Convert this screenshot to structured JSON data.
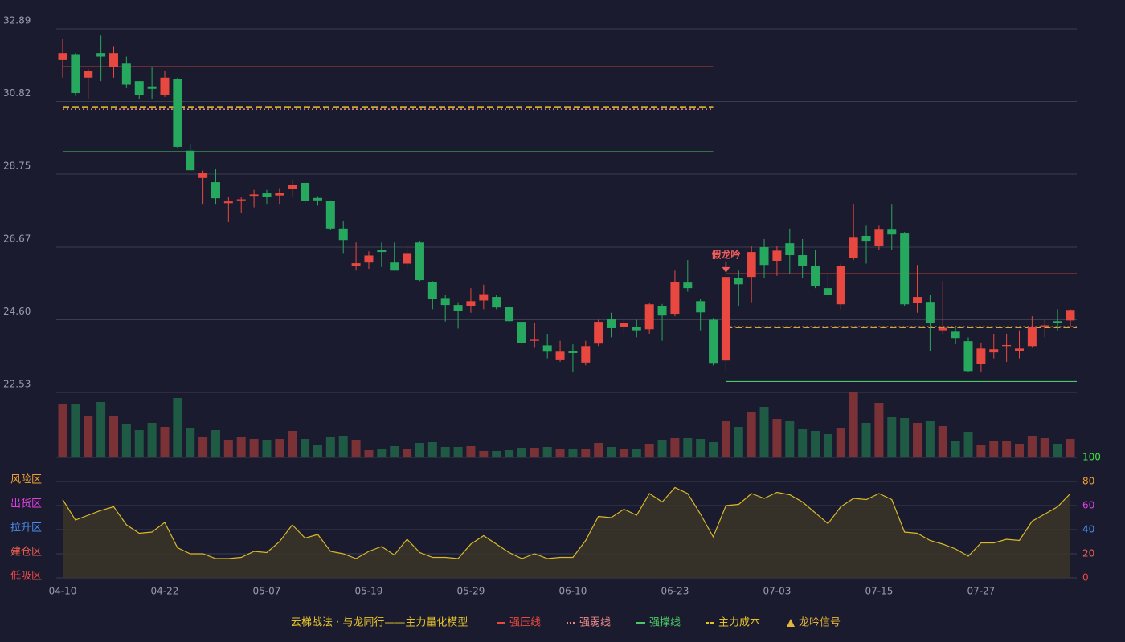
{
  "chart_data": {
    "type": "candlestick",
    "categories": [
      "04-10",
      null,
      null,
      null,
      null,
      null,
      null,
      null,
      "04-22",
      null,
      null,
      null,
      null,
      null,
      null,
      null,
      "05-07",
      null,
      null,
      null,
      null,
      null,
      null,
      null,
      "05-19",
      null,
      null,
      null,
      null,
      null,
      null,
      null,
      "05-29",
      null,
      null,
      null,
      null,
      null,
      null,
      null,
      "06-10",
      null,
      null,
      null,
      null,
      null,
      null,
      null,
      "06-23",
      null,
      null,
      null,
      null,
      null,
      null,
      null,
      "07-03",
      null,
      null,
      null,
      null,
      null,
      null,
      null,
      "07-15",
      null,
      null,
      null,
      null,
      null,
      null,
      null,
      "07-27",
      null,
      null,
      null,
      null,
      null,
      null,
      null
    ],
    "open": [
      32.0,
      32.17,
      31.5,
      32.2,
      31.8,
      31.9,
      31.4,
      31.25,
      31.0,
      31.47,
      29.42,
      28.64,
      28.52,
      27.92,
      28.0,
      28.13,
      28.2,
      28.14,
      28.32,
      28.5,
      28.07,
      27.99,
      27.2,
      26.14,
      26.23,
      26.6,
      26.23,
      26.2,
      26.8,
      25.68,
      25.22,
      25.02,
      25.0,
      25.15,
      25.25,
      24.97,
      24.54,
      24.0,
      23.87,
      23.47,
      23.7,
      23.38,
      23.92,
      24.63,
      24.4,
      24.4,
      24.33,
      25.0,
      24.77,
      25.66,
      25.13,
      24.6,
      23.44,
      25.8,
      25.82,
      26.67,
      26.28,
      26.78,
      26.44,
      26.14,
      25.5,
      25.04,
      26.37,
      26.99,
      26.71,
      27.19,
      27.08,
      25.08,
      25.11,
      24.3,
      24.26,
      23.99,
      23.35,
      23.67,
      23.85,
      23.71,
      23.85,
      24.39,
      24.56,
      24.58
    ],
    "high": [
      32.6,
      32.2,
      31.75,
      32.7,
      32.4,
      32.1,
      31.4,
      31.8,
      31.7,
      31.5,
      29.6,
      28.85,
      28.9,
      28.1,
      28.1,
      28.3,
      28.3,
      28.35,
      28.6,
      28.5,
      28.12,
      28.0,
      27.4,
      26.8,
      26.55,
      26.8,
      26.8,
      26.7,
      26.85,
      25.7,
      25.3,
      25.1,
      25.5,
      25.6,
      25.3,
      25.02,
      24.6,
      24.5,
      24.2,
      24.0,
      23.9,
      24.0,
      24.6,
      24.8,
      24.6,
      24.6,
      25.08,
      25.05,
      26.0,
      26.3,
      25.2,
      24.65,
      25.85,
      26.0,
      26.7,
      26.9,
      26.7,
      27.2,
      26.9,
      26.6,
      25.9,
      26.2,
      27.9,
      27.3,
      27.3,
      27.9,
      27.1,
      26.16,
      25.3,
      25.7,
      24.4,
      24.1,
      23.95,
      24.2,
      24.2,
      24.3,
      24.7,
      24.6,
      24.9,
      24.9
    ],
    "low": [
      31.5,
      30.98,
      30.9,
      31.4,
      31.5,
      31.2,
      30.9,
      30.9,
      30.95,
      29.5,
      28.85,
      27.9,
      27.9,
      27.38,
      27.65,
      27.8,
      27.9,
      27.9,
      28.1,
      27.9,
      27.85,
      27.15,
      26.5,
      26.0,
      26.05,
      26.1,
      26.0,
      26.05,
      25.7,
      24.9,
      24.55,
      24.35,
      24.8,
      24.9,
      24.9,
      24.5,
      23.8,
      23.8,
      23.5,
      23.4,
      23.1,
      23.3,
      23.85,
      24.1,
      24.2,
      24.1,
      24.2,
      24.0,
      24.7,
      25.4,
      24.3,
      23.3,
      23.12,
      25.0,
      25.1,
      25.8,
      25.85,
      25.9,
      25.8,
      25.5,
      25.2,
      24.9,
      26.3,
      26.2,
      26.6,
      26.6,
      25.0,
      24.8,
      23.7,
      24.2,
      23.9,
      23.1,
      23.1,
      23.5,
      23.4,
      23.5,
      23.8,
      24.1,
      24.3,
      24.4
    ],
    "close": [
      32.2,
      31.06,
      31.7,
      32.1,
      32.2,
      31.3,
      31.0,
      31.18,
      31.5,
      29.53,
      28.86,
      28.79,
      28.06,
      27.97,
      28.03,
      28.17,
      28.1,
      28.22,
      28.45,
      27.98,
      28.0,
      27.2,
      26.87,
      26.21,
      26.43,
      26.53,
      26.0,
      26.5,
      25.73,
      25.2,
      25.02,
      24.84,
      25.13,
      25.33,
      24.95,
      24.56,
      23.94,
      24.03,
      23.69,
      23.69,
      23.65,
      23.85,
      24.54,
      24.36,
      24.5,
      24.3,
      25.04,
      24.72,
      25.68,
      25.5,
      24.81,
      23.37,
      25.82,
      25.61,
      26.53,
      26.16,
      26.57,
      26.44,
      26.14,
      25.57,
      25.32,
      26.14,
      26.96,
      26.85,
      27.19,
      27.03,
      25.04,
      25.25,
      24.51,
      24.37,
      24.08,
      23.14,
      23.78,
      23.76,
      23.88,
      23.78,
      24.4,
      24.44,
      24.5,
      24.88
    ],
    "up_color": "#e8483f",
    "down_color": "#27a85f",
    "ylim": [
      22.53,
      32.89
    ],
    "yticks": [
      32.89,
      30.82,
      28.75,
      26.67,
      {
        "value": 24.6,
        "label": "24.60"
      },
      22.53
    ],
    "grid": true,
    "levels": [
      {
        "name": "强压线",
        "color": "#e8483f",
        "dash": "solid",
        "segments": [
          {
            "start": 0,
            "end": 51,
            "value": 31.81
          },
          {
            "start": 52,
            "end": 79,
            "value": 25.91
          }
        ]
      },
      {
        "name": "强弱线",
        "color": "#f08a8a",
        "dash": "dotted",
        "segments": [
          {
            "start": 0,
            "end": 51,
            "value": 30.6
          },
          {
            "start": 52,
            "end": 79,
            "value": 24.4
          }
        ]
      },
      {
        "name": "强撑线",
        "color": "#4cc864",
        "dash": "solid",
        "segments": [
          {
            "start": 0,
            "end": 51,
            "value": 29.39
          },
          {
            "start": 52,
            "end": 79,
            "value": 22.84
          }
        ]
      },
      {
        "name": "主力成本",
        "color": "#e6c229",
        "dash": "dashed",
        "segments": [
          {
            "start": 0,
            "end": 51,
            "value": 30.67
          },
          {
            "start": 52,
            "end": 79,
            "value": 24.38
          }
        ]
      }
    ],
    "annotations": [
      {
        "text": "假龙吟",
        "index": 52,
        "color": "#f05b5b"
      }
    ],
    "signal": {
      "name": "龙吟信号",
      "color": "#e6b53c"
    },
    "legend_title": "云梯战法 · 与龙同行——主力量化模型",
    "volume": {
      "values": [
        66,
        66,
        51,
        69,
        51,
        42,
        34,
        43,
        38,
        74,
        37,
        25,
        34,
        22,
        25,
        23,
        22,
        23,
        33,
        23,
        15,
        26,
        27,
        22,
        9,
        11,
        14,
        11,
        18,
        19,
        13,
        13,
        14,
        8,
        8,
        9,
        12,
        12,
        13,
        10,
        11,
        11,
        18,
        13,
        11,
        11,
        17,
        22,
        24,
        24,
        23,
        19,
        46,
        38,
        56,
        63,
        48,
        45,
        35,
        33,
        29,
        37,
        81,
        43,
        68,
        50,
        49,
        43,
        45,
        39,
        21,
        32,
        16,
        21,
        20,
        17,
        27,
        24,
        17,
        23
      ],
      "up_color": "#7a3236",
      "down_color": "#1f5a45"
    },
    "indicator": {
      "values": [
        65,
        48,
        52,
        56,
        59,
        44,
        37,
        38,
        46,
        25,
        20,
        20,
        16,
        16,
        17,
        22,
        21,
        30,
        44,
        33,
        36,
        22,
        20,
        16,
        22,
        26,
        19,
        32,
        21,
        17,
        17,
        16,
        28,
        35,
        28,
        21,
        16,
        20,
        16,
        17,
        17,
        31,
        51,
        50,
        57,
        52,
        70,
        63,
        75,
        70,
        53,
        34,
        60,
        61,
        70,
        66,
        71,
        69,
        63,
        54,
        45,
        59,
        66,
        65,
        70,
        65,
        38,
        37,
        31,
        28,
        24,
        18,
        29,
        29,
        32,
        31,
        47,
        53,
        59,
        70
      ],
      "color": "#d9b92a",
      "ylim": [
        0,
        100
      ],
      "yticks": [
        0,
        20,
        40,
        60,
        80,
        100
      ],
      "tick_colors": [
        "#f04848",
        "#f06050",
        "#4a8cf0",
        "#e040e0",
        "#f0a030",
        "#40e040"
      ],
      "zones": [
        {
          "label": "风险区",
          "value": 80,
          "color": "#f0a030"
        },
        {
          "label": "出货区",
          "value": 60,
          "color": "#e040e0"
        },
        {
          "label": "拉升区",
          "value": 40,
          "color": "#4a8cf0"
        },
        {
          "label": "建仓区",
          "value": 20,
          "color": "#f06050"
        },
        {
          "label": "低吸区",
          "value": 0,
          "color": "#f04848"
        }
      ]
    }
  }
}
